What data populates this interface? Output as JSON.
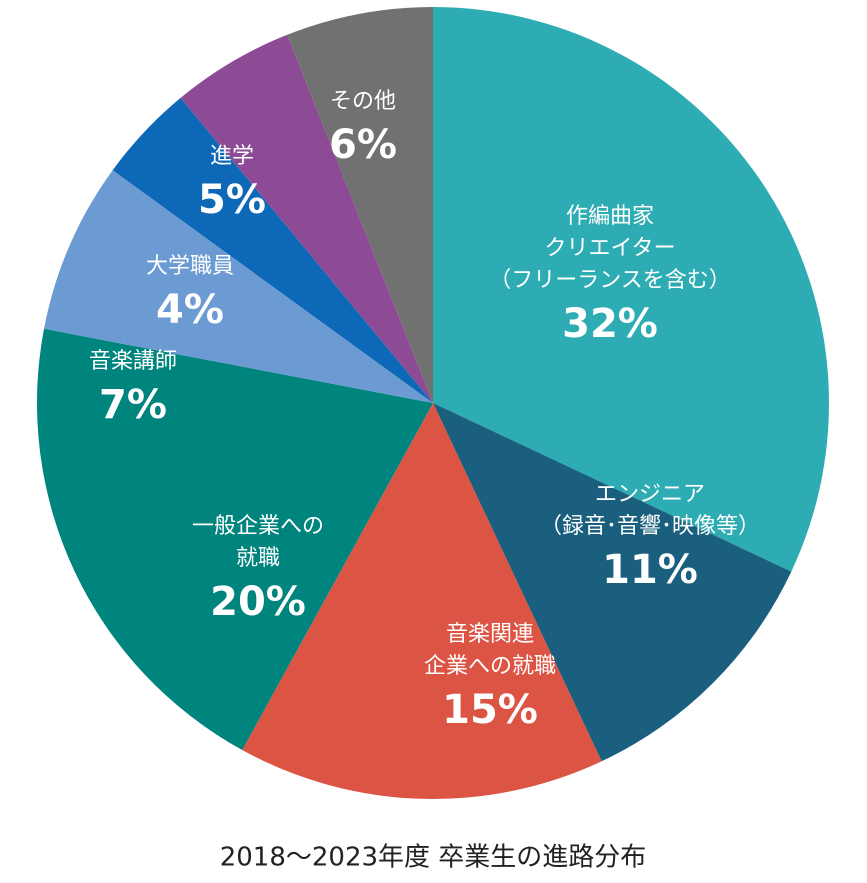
{
  "chart_data": {
    "type": "pie",
    "title": "2018～2023年度 卒業生の進路分布",
    "categories": [
      [
        "作編曲家",
        "クリエイター",
        "（フリーランスを含む）"
      ],
      [
        "エンジニア",
        "（録音･音響･映像等）"
      ],
      [
        "音楽関連",
        "企業への就職"
      ],
      [
        "一般企業への",
        "就職"
      ],
      [
        "音楽講師"
      ],
      [
        "大学職員"
      ],
      [
        "進学"
      ],
      [
        "その他"
      ]
    ],
    "values": [
      32,
      11,
      15,
      20,
      7,
      4,
      5,
      6
    ],
    "value_labels": [
      "32%",
      "11%",
      "15%",
      "20%",
      "7%",
      "4%",
      "5%",
      "6%"
    ],
    "colors": [
      "#2eacb3",
      "#1a5f7e",
      "#dc5444",
      "#00847e",
      "#6b9bd2",
      "#0d69b8",
      "#8c4b94",
      "#717171"
    ]
  }
}
